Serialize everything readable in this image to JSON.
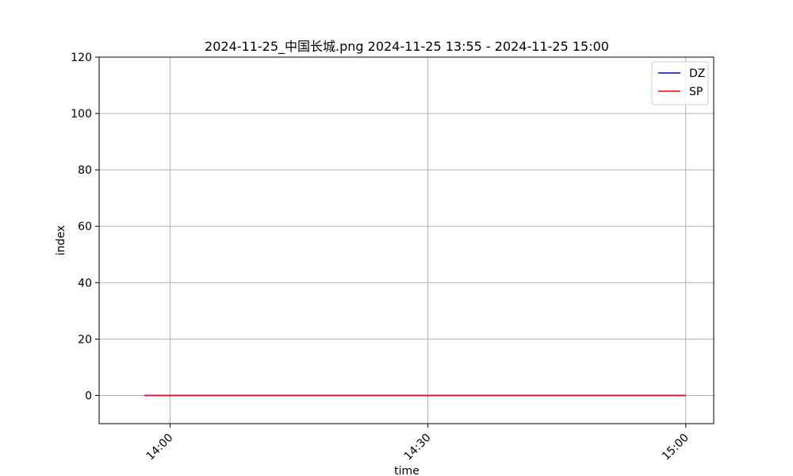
{
  "chart_data": {
    "type": "line",
    "title": "2024-11-25_中国长城.png 2024-11-25 13:55 - 2024-11-25 15:00",
    "xlabel": "time",
    "ylabel": "index",
    "x_range": [
      "13:55",
      "15:00"
    ],
    "ylim": [
      -10,
      120
    ],
    "yticks": [
      0,
      20,
      40,
      60,
      80,
      100,
      120
    ],
    "xticks": [
      "14:00",
      "14:30",
      "15:00"
    ],
    "grid": true,
    "legend_position": "upper right",
    "series": [
      {
        "name": "DZ",
        "color": "#0000ff",
        "points": [
          {
            "x": "13:57",
            "y": 0
          },
          {
            "x": "15:00",
            "y": 0
          }
        ]
      },
      {
        "name": "SP",
        "color": "#ff0000",
        "points": [
          {
            "x": "13:57",
            "y": 0
          },
          {
            "x": "15:00",
            "y": 0
          }
        ]
      }
    ]
  }
}
